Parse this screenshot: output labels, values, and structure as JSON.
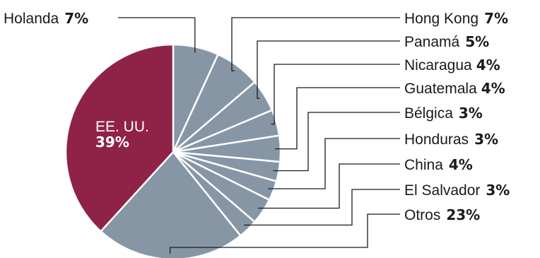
{
  "chart_data": {
    "type": "pie",
    "title": "",
    "colors": {
      "highlight": "#8f2247",
      "default": "#8796a5"
    },
    "slices": [
      {
        "label": "Holanda",
        "value": 7,
        "display": "7%"
      },
      {
        "label": "Hong Kong",
        "value": 7,
        "display": "7%"
      },
      {
        "label": "Panamá",
        "value": 5,
        "display": "5%"
      },
      {
        "label": "Nicaragua",
        "value": 4,
        "display": "4%"
      },
      {
        "label": "Guatemala",
        "value": 4,
        "display": "4%"
      },
      {
        "label": "Bélgica",
        "value": 3,
        "display": "3%"
      },
      {
        "label": "Honduras",
        "value": 3,
        "display": "3%"
      },
      {
        "label": "China",
        "value": 4,
        "display": "4%"
      },
      {
        "label": "El Salvador",
        "value": 3,
        "display": "3%"
      },
      {
        "label": "Otros",
        "value": 23,
        "display": "23%"
      },
      {
        "label": "EE. UU.",
        "value": 39,
        "display": "39%",
        "highlight": true
      }
    ]
  }
}
